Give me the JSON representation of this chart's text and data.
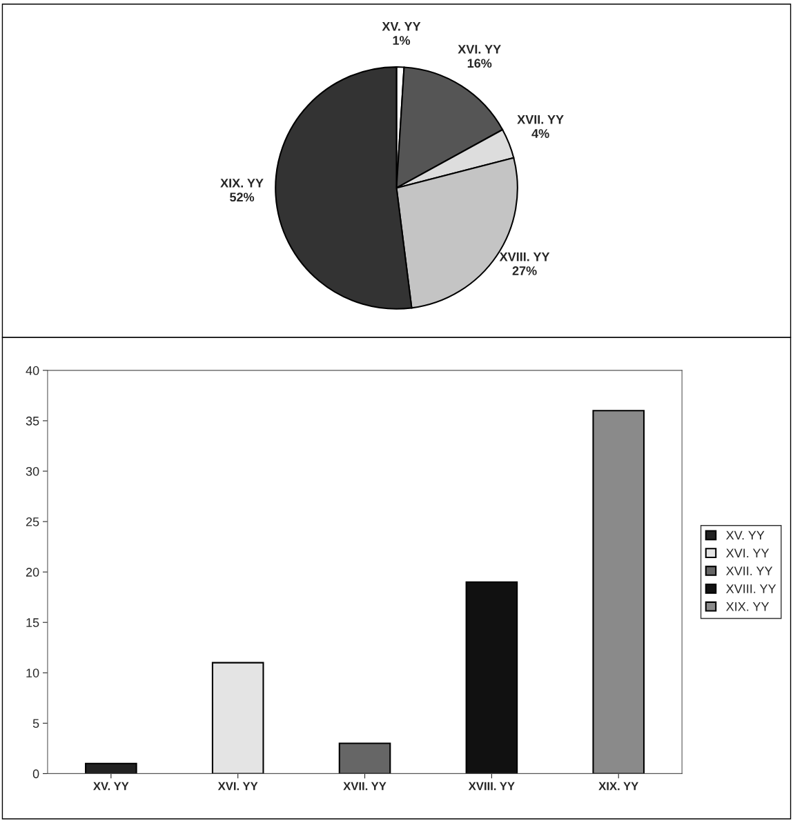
{
  "chart_data": [
    {
      "type": "pie",
      "categories": [
        "XV. YY",
        "XVI. YY",
        "XVII. YY",
        "XVIII. YY",
        "XIX. YY"
      ],
      "values": [
        1,
        16,
        4,
        27,
        52
      ],
      "value_labels": [
        "1%",
        "16%",
        "4%",
        "27%",
        "52%"
      ],
      "colors": [
        "#ffffff",
        "#555555",
        "#dddddd",
        "#c4c4c4",
        "#333333"
      ]
    },
    {
      "type": "bar",
      "categories": [
        "XV. YY",
        "XVI. YY",
        "XVII. YY",
        "XVIII. YY",
        "XIX. YY"
      ],
      "series": [
        {
          "name": "XV. YY",
          "color": "#222222",
          "values": [
            1,
            null,
            null,
            null,
            null
          ]
        },
        {
          "name": "XVI. YY",
          "color": "#e4e4e4",
          "values": [
            null,
            11,
            null,
            null,
            null
          ]
        },
        {
          "name": "XVII. YY",
          "color": "#666666",
          "values": [
            null,
            null,
            3,
            null,
            null
          ]
        },
        {
          "name": "XVIII. YY",
          "color": "#111111",
          "values": [
            null,
            null,
            null,
            19,
            null
          ]
        },
        {
          "name": "XIX. YY",
          "color": "#8a8a8a",
          "values": [
            null,
            null,
            null,
            null,
            36
          ]
        }
      ],
      "ylim": [
        0,
        40
      ],
      "yticks": [
        0,
        5,
        10,
        15,
        20,
        25,
        30,
        35,
        40
      ],
      "legend": "right"
    }
  ]
}
